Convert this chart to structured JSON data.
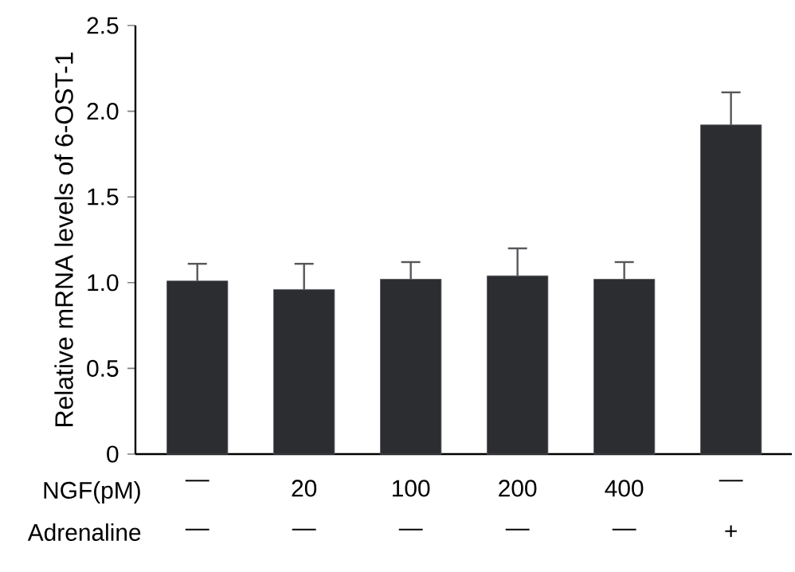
{
  "chart_data": {
    "type": "bar",
    "ylabel": "Relative mRNA levels of 6-OST-1",
    "xlabel": "NGF(pM)",
    "categories": [
      "—",
      "20",
      "100",
      "200",
      "400",
      "—"
    ],
    "values": [
      1.01,
      0.96,
      1.02,
      1.04,
      1.02,
      1.92
    ],
    "errors": [
      [
        1.01,
        1.11
      ],
      [
        0.96,
        1.11
      ],
      [
        1.02,
        1.12
      ],
      [
        1.04,
        1.2
      ],
      [
        1.02,
        1.12
      ],
      [
        1.92,
        2.11
      ]
    ],
    "color": "#2b2d31",
    "ylim": [
      0,
      2.5
    ],
    "yticks": [
      0,
      0.5,
      {
        "value": 1,
        "label": "1.0"
      },
      1.5,
      {
        "value": 2,
        "label": "2.0"
      },
      2.5
    ],
    "annotations": [
      "Adrenaline",
      "—",
      "—",
      "—",
      "—",
      "—",
      "+"
    ],
    "grid": false
  }
}
